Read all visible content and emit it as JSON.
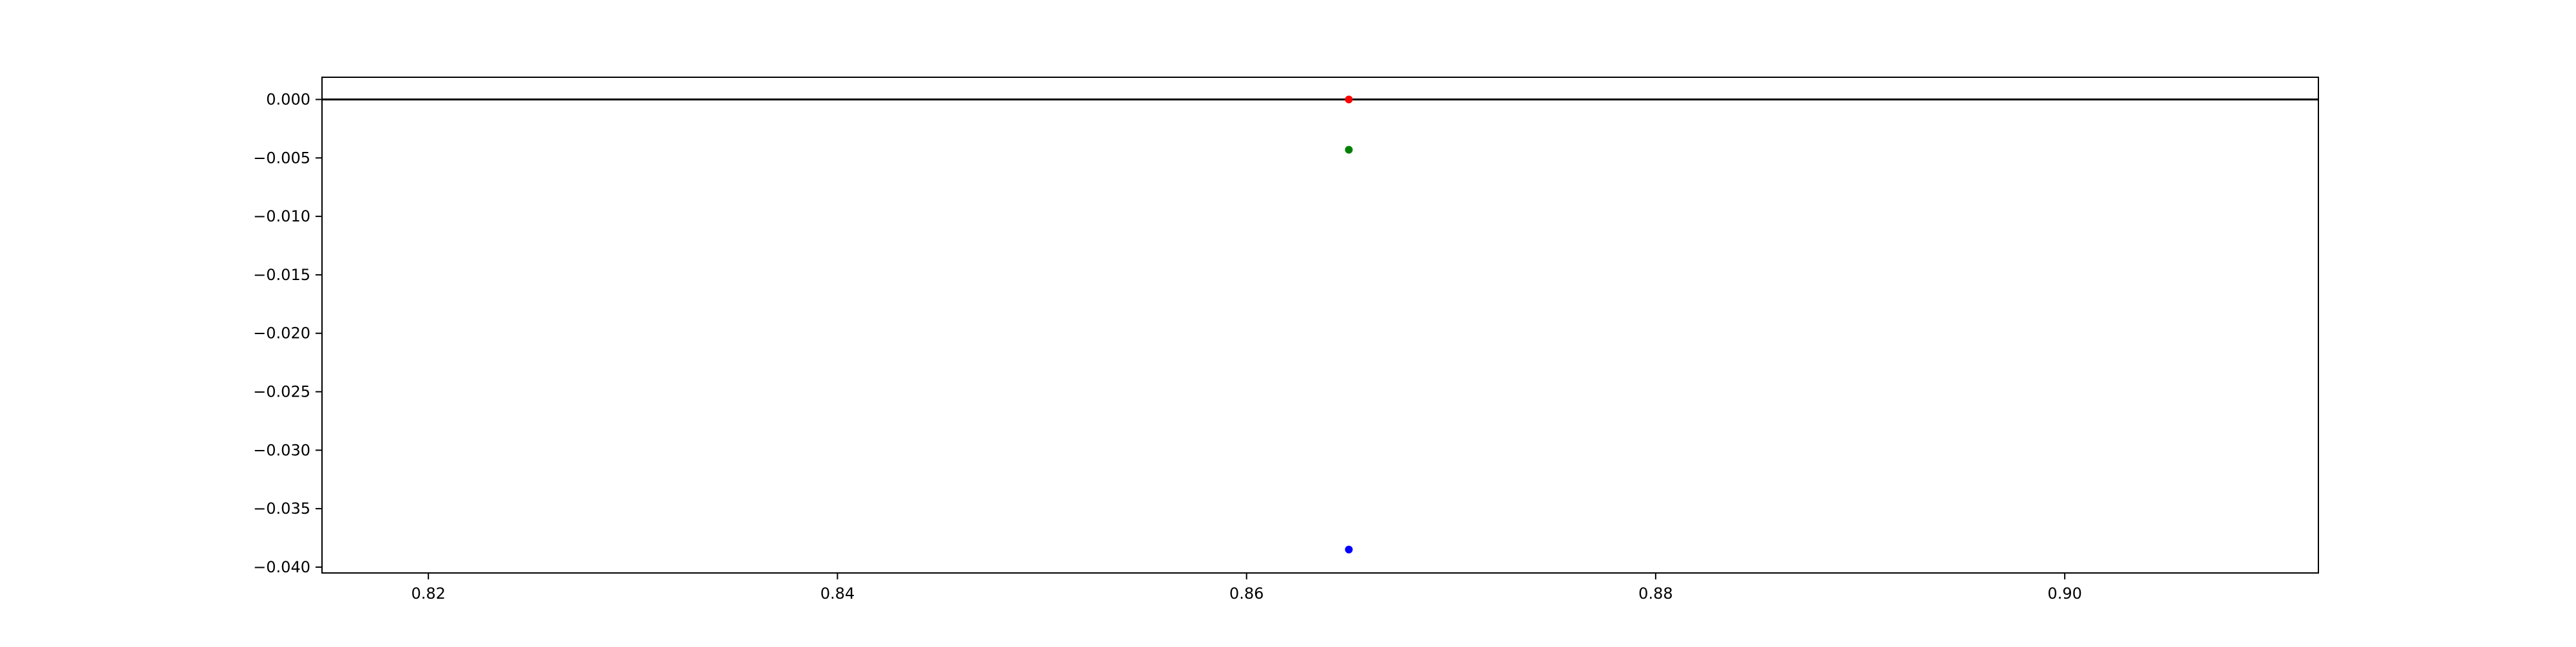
{
  "chart_data": {
    "type": "scatter",
    "title": "",
    "xlabel": "",
    "ylabel": "",
    "xlim": [
      0.8148,
      0.9124
    ],
    "ylim": [
      -0.0405,
      0.0019
    ],
    "x_ticks": [
      0.82,
      0.84,
      0.86,
      0.88,
      0.9
    ],
    "x_tick_labels": [
      "0.82",
      "0.84",
      "0.86",
      "0.88",
      "0.90"
    ],
    "y_ticks": [
      0.0,
      -0.005,
      -0.01,
      -0.015,
      -0.02,
      -0.025,
      -0.03,
      -0.035,
      -0.04
    ],
    "y_tick_labels": [
      "0.000",
      "−0.005",
      "−0.010",
      "−0.015",
      "−0.020",
      "−0.025",
      "−0.030",
      "−0.035",
      "−0.040"
    ],
    "grid": false,
    "reference_lines": [
      {
        "axis": "y",
        "value": 0.0,
        "color": "#000000"
      }
    ],
    "series": [
      {
        "color": "#ff0000",
        "points": [
          {
            "x": 0.865,
            "y": 0.0
          }
        ]
      },
      {
        "color": "#008000",
        "points": [
          {
            "x": 0.865,
            "y": -0.0043
          }
        ]
      },
      {
        "color": "#0000ff",
        "points": [
          {
            "x": 0.865,
            "y": -0.0385
          }
        ]
      }
    ]
  }
}
